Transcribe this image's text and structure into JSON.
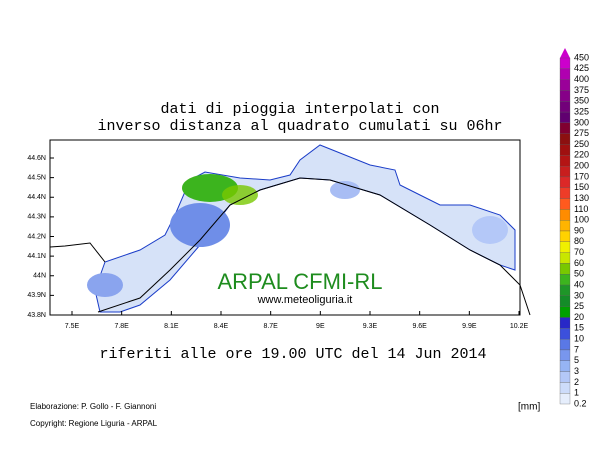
{
  "title": [
    "dati di pioggia interpolati con",
    "inverso distanza al quadrato cumulati su 06hr"
  ],
  "subtitle": "riferiti alle ore 19.00 UTC del 14 Jun 2014",
  "lat_labels": [
    "44.6N",
    "44.5N",
    "44.4N",
    "44.3N",
    "44.2N",
    "44.1N",
    "44N",
    "43.9N",
    "43.8N"
  ],
  "lon_labels": [
    "7.5E",
    "7.8E",
    "8.1E",
    "8.4E",
    "8.7E",
    "9E",
    "9.3E",
    "9.6E",
    "9.9E",
    "10.2E"
  ],
  "watermark": "ARPAL CFMI-RL",
  "website": "www.meteoliguria.it",
  "credits": [
    "Elaborazione: P. Gollo - F. Giannoni",
    "Copyright: Regione Liguria - ARPAL"
  ],
  "unit": "[mm]",
  "legend": {
    "labels": [
      450,
      425,
      400,
      375,
      350,
      325,
      300,
      275,
      250,
      220,
      200,
      170,
      150,
      130,
      110,
      100,
      90,
      80,
      70,
      60,
      50,
      40,
      30,
      25,
      20,
      15,
      10,
      7,
      5,
      3,
      2,
      1,
      0.2
    ],
    "colors": [
      "#cc00cc",
      "#b000b0",
      "#9a0099",
      "#860088",
      "#72007a",
      "#600070",
      "#800030",
      "#8c1010",
      "#a01010",
      "#b41414",
      "#c81e1e",
      "#dc2828",
      "#ee3c28",
      "#ff5a1e",
      "#ff8c00",
      "#ffb400",
      "#ffd200",
      "#f0f000",
      "#c8e600",
      "#78c800",
      "#3cb41e",
      "#1e9628",
      "#148c28",
      "#00a000",
      "#2828c8",
      "#3c50dc",
      "#5a78e6",
      "#7896ee",
      "#96b4f4",
      "#b4c8f8",
      "#cddcfa",
      "#e6eefc"
    ]
  }
}
